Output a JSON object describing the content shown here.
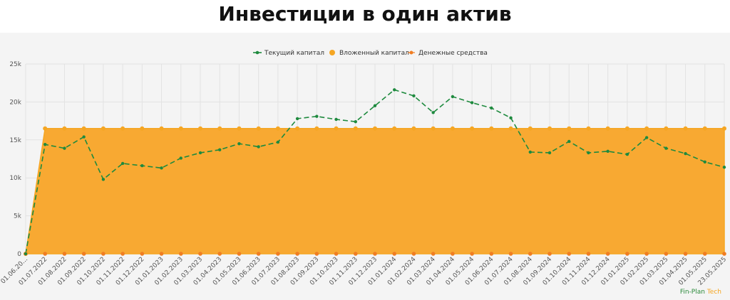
{
  "page": {
    "title": "Инвестиции в один актив"
  },
  "watermark": {
    "part1": "Fin-Plan",
    "part2": "Tech"
  },
  "colors": {
    "current_capital": "#1e8a3e",
    "invested_capital": "#f5a623",
    "cash": "#f07d22",
    "area_fill": "#f8a932",
    "grid": "#e2e2e2"
  },
  "chart_data": {
    "type": "area",
    "title": "Инвестиции в один актив",
    "xlabel": "",
    "ylabel": "",
    "ylim": [
      0,
      25000
    ],
    "yticks": [
      0,
      5000,
      10000,
      15000,
      20000,
      25000
    ],
    "ytick_labels": [
      "0",
      "5k",
      "10k",
      "15k",
      "20k",
      "25k"
    ],
    "legend_position": "top-center",
    "grid": true,
    "x": [
      "01.06.20...",
      "01.07.2022",
      "01.08.2022",
      "01.09.2022",
      "01.10.2022",
      "01.11.2022",
      "01.12.2022",
      "01.01.2023",
      "01.02.2023",
      "01.03.2023",
      "01.04.2023",
      "01.05.2023",
      "01.06.2023",
      "01.07.2023",
      "01.08.2023",
      "01.09.2023",
      "01.10.2023",
      "01.11.2023",
      "01.12.2023",
      "01.01.2024",
      "01.02.2024",
      "01.03.2024",
      "01.04.2024",
      "01.05.2024",
      "01.06.2024",
      "01.07.2024",
      "01.08.2024",
      "01.09.2024",
      "01.10.2024",
      "01.11.2024",
      "01.12.2024",
      "01.01.2025",
      "01.02.2025",
      "01.03.2025",
      "01.04.2025",
      "01.05.2025",
      "23.05.2025"
    ],
    "series": [
      {
        "name": "Текущий капитал",
        "style": "dashed-line",
        "values": [
          0,
          14400,
          13900,
          15400,
          9800,
          11900,
          11600,
          11300,
          12600,
          13300,
          13700,
          14500,
          14100,
          14700,
          17800,
          18100,
          17700,
          17400,
          19500,
          21600,
          20800,
          18600,
          20700,
          19900,
          19200,
          17900,
          13400,
          13300,
          14800,
          13300,
          13500,
          13100,
          15300,
          13900,
          13200,
          12100,
          11400
        ]
      },
      {
        "name": "Вложенный капитал",
        "style": "area",
        "values": [
          0,
          16500,
          16500,
          16500,
          16500,
          16500,
          16500,
          16500,
          16500,
          16500,
          16500,
          16500,
          16500,
          16500,
          16500,
          16500,
          16500,
          16500,
          16500,
          16500,
          16500,
          16500,
          16500,
          16500,
          16500,
          16500,
          16500,
          16500,
          16500,
          16500,
          16500,
          16500,
          16500,
          16500,
          16500,
          16500,
          16500
        ]
      },
      {
        "name": "Денежные средства",
        "style": "markers",
        "values": [
          0,
          0,
          0,
          0,
          0,
          0,
          0,
          0,
          0,
          0,
          0,
          0,
          0,
          0,
          0,
          0,
          0,
          0,
          0,
          0,
          0,
          0,
          0,
          0,
          0,
          0,
          0,
          0,
          0,
          0,
          0,
          0,
          0,
          0,
          0,
          0,
          0
        ]
      }
    ]
  }
}
